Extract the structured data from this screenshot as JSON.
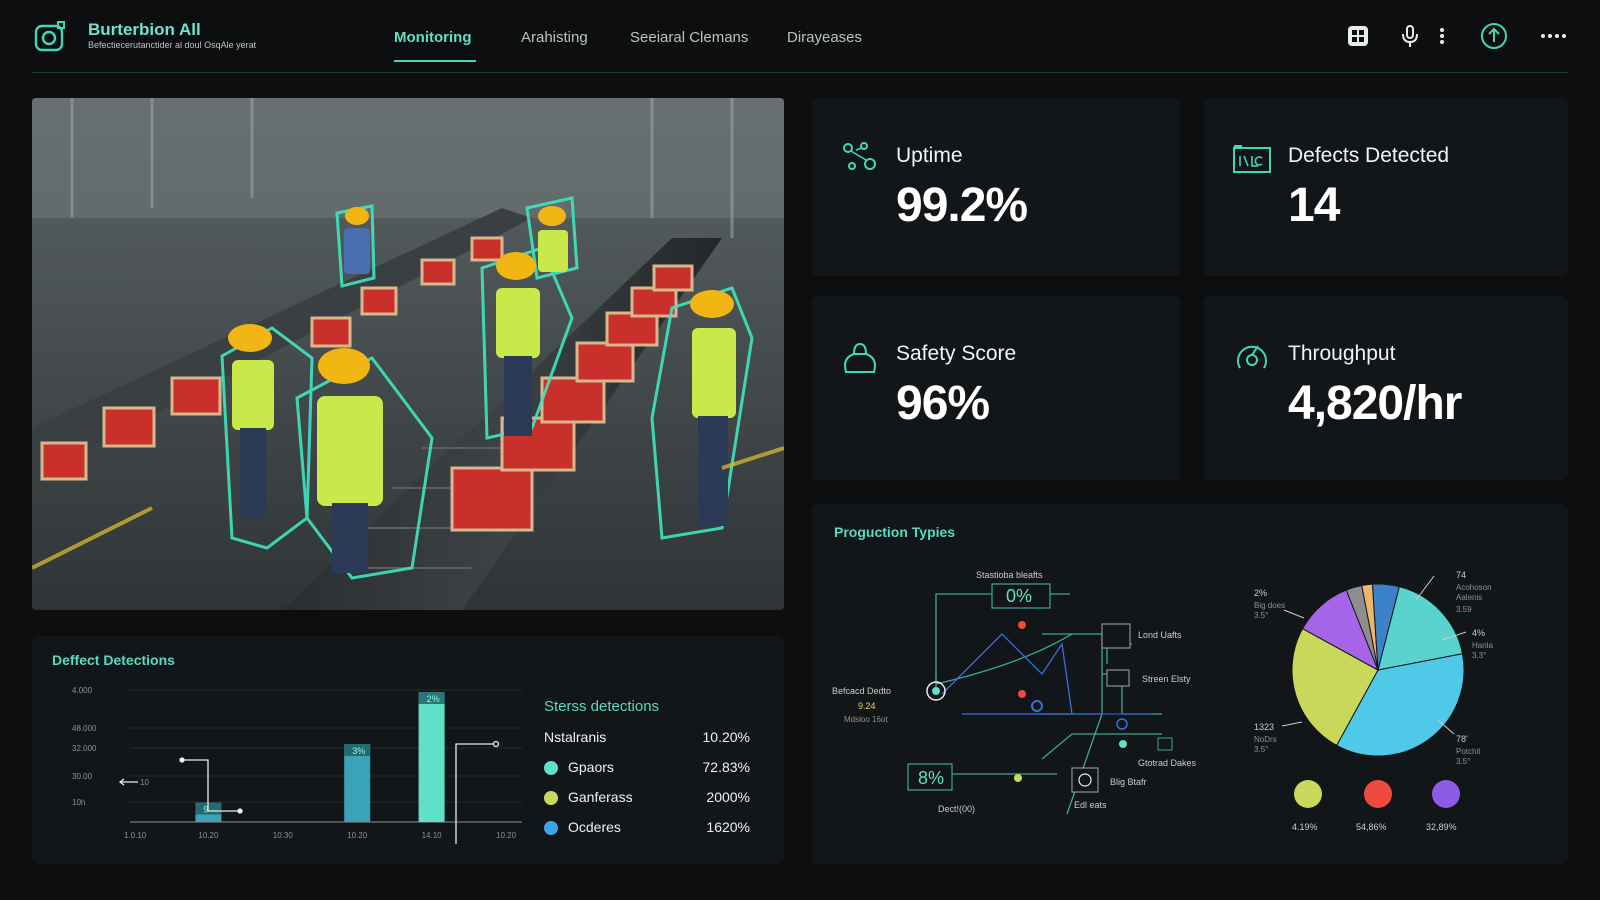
{
  "header": {
    "app_title": "Burterbion All",
    "app_subtitle": "Befectiecerutanctider al doul OsqAle yerat",
    "tabs": [
      {
        "label": "Monitoring",
        "active": true
      },
      {
        "label": "Arahisting",
        "active": false
      },
      {
        "label": "Seeiaral Clemans",
        "active": false
      },
      {
        "label": "Dirayeases",
        "active": false
      }
    ],
    "icons": [
      "grid-icon",
      "microphone-icon",
      "kebab-menu-icon",
      "user-upload-icon",
      "more-dots-icon"
    ]
  },
  "colors": {
    "accent": "#41d8b9",
    "background": "#0c0e10",
    "panel": "#131618"
  },
  "stats": [
    {
      "label": "Uptime",
      "value": "99.2%",
      "icon": "sensor-nodes-icon"
    },
    {
      "label": "Defects Detected",
      "value": "14",
      "icon": "monitor-icon"
    },
    {
      "label": "Safety Score",
      "value": "96%",
      "icon": "bag-icon"
    },
    {
      "label": "Throughput",
      "value": "4,820/hr",
      "icon": "gauge-icon"
    }
  ],
  "defects": {
    "title": "Deffect Detections",
    "chart_data": {
      "type": "bar",
      "categories": [
        "1.0.10",
        "10.20",
        "10.30",
        "10.20",
        "14.10",
        "10.20"
      ],
      "y_ticks": [
        "4.000",
        "48.000",
        "32.000",
        "30.00",
        "10h"
      ],
      "bars": [
        {
          "category_index": 1,
          "label": "9",
          "value": 300
        },
        {
          "category_index": 3,
          "label": "3%",
          "value": 1200
        },
        {
          "category_index": 4,
          "label": "2%",
          "value": 2000
        }
      ],
      "left_marker": "10"
    },
    "legend_title": "Sterss detections",
    "legend": [
      {
        "name": "Nstalranis",
        "value": "10.20%",
        "color": ""
      },
      {
        "name": "Gpaors",
        "value": "72.83%",
        "color": "#5fe0c8"
      },
      {
        "name": "Ganferass",
        "value": "2000%",
        "color": "#c9d85a"
      },
      {
        "name": "Ocderes",
        "value": "1620%",
        "color": "#3ea3e6"
      }
    ]
  },
  "production": {
    "title": "Proguction Typies",
    "flow": {
      "top_label": "Stastioba bleafts",
      "top_value": "0%",
      "left_label": "Befcacd Dedto",
      "left_value": "9.24",
      "left_sub": "Mdsloo 16ot",
      "bottom_value": "8%",
      "bottom_label": "Dect!(00)",
      "nodes": [
        {
          "label": "Lond Uafts"
        },
        {
          "label": "Streen Elsty"
        },
        {
          "label": "Gtotrad Dakes"
        },
        {
          "label": "Blig Btafr"
        },
        {
          "label": "Edl eats"
        }
      ]
    },
    "chart_data": {
      "type": "pie",
      "slices": [
        {
          "color": "#4ec9e8",
          "value": 36
        },
        {
          "color": "#5ad3cf",
          "value": 18
        },
        {
          "color": "#c9d85a",
          "value": 25
        },
        {
          "color": "#a565e6",
          "value": 11
        },
        {
          "color": "#8e8e8e",
          "value": 3
        },
        {
          "color": "#f0b46a",
          "value": 2
        },
        {
          "color": "#3b82c9",
          "value": 5
        }
      ],
      "callouts": [
        {
          "value": "2%",
          "line1": "Big does",
          "line2": "3.5°"
        },
        {
          "value": "74",
          "line1": "Acohoson",
          "line2": "Aalenis",
          "line3": "3.59"
        },
        {
          "value": "4%",
          "line1": "Hanla",
          "line2": "3.3°"
        },
        {
          "value": "1323",
          "line1": "NoDrs",
          "line2": "3.5°"
        },
        {
          "value": "78'",
          "line1": "Potchit",
          "line2": "3.5°"
        }
      ],
      "bottom_legend": [
        {
          "color": "#c9d85a",
          "value": "4.19%"
        },
        {
          "color": "#ef4a3f",
          "value": "54,86%"
        },
        {
          "color": "#8e5be6",
          "value": "32,89%"
        }
      ]
    }
  }
}
